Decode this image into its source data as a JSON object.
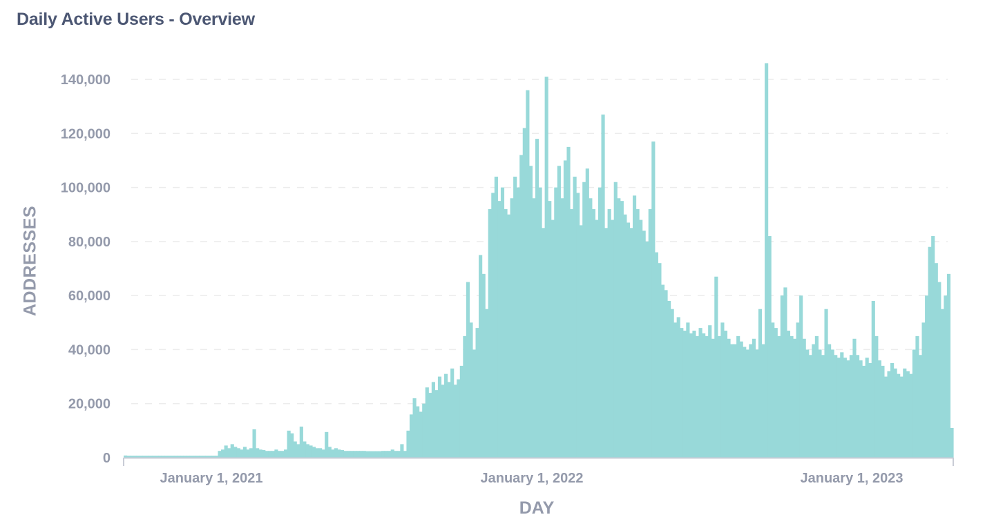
{
  "header": {
    "title": "Daily Active Users - Overview"
  },
  "colors": {
    "bar": "#98d9d9",
    "grid": "#ececec",
    "axis": "#c9ccd6",
    "text": "#949aab",
    "title": "#4c5773"
  },
  "chart_data": {
    "type": "bar",
    "title": "Daily Active Users - Overview",
    "xlabel": "DAY",
    "ylabel": "ADDRESSES",
    "ylim": [
      0,
      140000
    ],
    "yticks": [
      0,
      20000,
      40000,
      60000,
      80000,
      100000,
      120000,
      140000
    ],
    "ytick_labels": [
      "0",
      "20,000",
      "40,000",
      "60,000",
      "80,000",
      "100,000",
      "120,000",
      "140,000"
    ],
    "xticks": [
      {
        "label": "January 1, 2021",
        "x": 306
      },
      {
        "label": "January 1, 2022",
        "x": 770
      },
      {
        "label": "January 1, 2023",
        "x": 1233
      }
    ],
    "grid": "horizontal dashed",
    "legend": "none",
    "x_range": [
      "2020-08",
      "2023-04"
    ],
    "granularity_note": "approximate weekly samples read from daily bars",
    "categories": [
      "2020-08",
      "2020-09",
      "2020-10",
      "2020-11",
      "2020-12",
      "2021-01",
      "2021-02",
      "2021-03",
      "2021-04",
      "2021-05",
      "2021-06",
      "2021-07",
      "2021-08",
      "2021-09",
      "2021-10",
      "2021-11",
      "2021-12",
      "2022-01",
      "2022-02",
      "2022-03",
      "2022-04",
      "2022-05",
      "2022-06",
      "2022-07",
      "2022-08",
      "2022-09",
      "2022-10",
      "2022-11",
      "2022-12",
      "2023-01",
      "2023-02",
      "2023-03",
      "2023-04"
    ],
    "values": [
      800,
      700,
      700,
      700,
      700,
      700,
      700,
      700,
      700,
      700,
      700,
      700,
      700,
      700,
      700,
      700,
      700,
      700,
      700,
      700,
      700,
      700,
      700,
      700,
      700,
      700,
      700,
      700,
      700,
      700,
      2500,
      3000,
      4500,
      3500,
      5000,
      4000,
      3500,
      3000,
      4000,
      3000,
      3500,
      10500,
      3500,
      3000,
      2800,
      2500,
      2500,
      2500,
      3000,
      2500,
      2500,
      3000,
      10000,
      9000,
      6000,
      5000,
      11500,
      6000,
      5000,
      4500,
      4000,
      3500,
      3500,
      3000,
      9500,
      4000,
      3000,
      3500,
      3000,
      2800,
      2500,
      2500,
      2500,
      2500,
      2500,
      2500,
      2500,
      2400,
      2400,
      2400,
      2400,
      2400,
      2500,
      2500,
      2500,
      3000,
      2500,
      2500,
      5000,
      2500,
      10000,
      16000,
      22000,
      19000,
      17000,
      20000,
      26000,
      24000,
      28000,
      25000,
      30000,
      27000,
      31000,
      28000,
      33000,
      27000,
      29000,
      34000,
      45000,
      65000,
      50000,
      40000,
      48000,
      75000,
      68000,
      55000,
      92000,
      98000,
      104000,
      95000,
      100000,
      92000,
      90000,
      96000,
      104000,
      100000,
      112000,
      122000,
      136000,
      108000,
      96000,
      118000,
      100000,
      85000,
      141000,
      95000,
      88000,
      100000,
      108000,
      96000,
      110000,
      115000,
      92000,
      104000,
      98000,
      86000,
      102000,
      107000,
      96000,
      92000,
      88000,
      100000,
      127000,
      85000,
      92000,
      88000,
      102000,
      96000,
      95000,
      90000,
      87000,
      85000,
      97000,
      92000,
      88000,
      84000,
      80000,
      92000,
      117000,
      76000,
      72000,
      64000,
      62000,
      58000,
      55000,
      50000,
      52000,
      48000,
      47000,
      50000,
      46000,
      47000,
      45000,
      48000,
      46000,
      45000,
      49000,
      44000,
      67000,
      45000,
      50000,
      47000,
      44000,
      42000,
      42000,
      45000,
      43000,
      41000,
      40000,
      42000,
      44000,
      40000,
      55000,
      42000,
      146000,
      82000,
      50000,
      48000,
      45000,
      60000,
      63000,
      47000,
      45000,
      44000,
      50000,
      60000,
      44000,
      40000,
      38000,
      42000,
      45000,
      40000,
      38000,
      55000,
      42000,
      40000,
      38000,
      37000,
      39000,
      37000,
      36000,
      38000,
      44000,
      38000,
      36000,
      34000,
      37000,
      35000,
      58000,
      45000,
      36000,
      34000,
      30000,
      32000,
      35000,
      33000,
      31000,
      30000,
      33000,
      32000,
      31000,
      40000,
      45000,
      38000,
      50000,
      60000,
      78000,
      82000,
      72000,
      65000,
      55000,
      60000,
      68000,
      11000
    ]
  }
}
